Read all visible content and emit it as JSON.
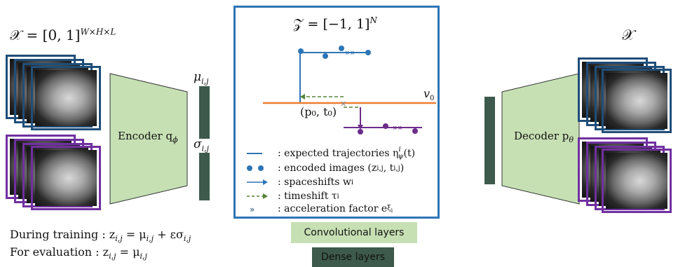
{
  "input_space": "𝒳 = [0, 1]",
  "input_space_sup": "W×H×L",
  "output_space": "𝒳",
  "latent_space": "𝒵 = [−1, 1]",
  "latent_space_sup": "N",
  "encoder_label": "Encoder q",
  "encoder_sub": "ϕ",
  "decoder_label": "Decoder p",
  "decoder_sub": "θ",
  "mu_label": "μ",
  "mu_sub": "i,j",
  "sigma_label": "σ",
  "sigma_sub": "i,j",
  "v0_label": "v",
  "v0_sub": "0",
  "p0t0_label": "(p₀, t₀)",
  "legend": [
    {
      "text": ": expected trajectories η",
      "sup": "i",
      "sub": "ψ",
      "tail": "(t)"
    },
    {
      "text": ": encoded images (z",
      "sub": "i,j",
      "mid": ", t",
      "sub2": "i,j",
      "tail": ")"
    },
    {
      "text": ": spaceshifts w",
      "sub": "i"
    },
    {
      "text": ": timeshift τ",
      "sub": "i"
    },
    {
      "text": ": acceleration factor e",
      "sup": "ξ",
      "supsub": "i"
    }
  ],
  "training_text": "During training : z",
  "training_sub": "i,j",
  "training_rhs": " = μ",
  "training_rhs_sub": "i,j",
  "training_rhs2": " + εσ",
  "training_rhs2_sub": "i,j",
  "eval_text": "For evaluation : z",
  "eval_sub": "i,j",
  "eval_rhs": " = μ",
  "eval_rhs_sub": "i,j",
  "conv_label": "Convolutional layers",
  "dense_label": "Dense layers",
  "colors": {
    "blue_frame": "#1f4e79",
    "purple_frame": "#7030a0",
    "conv_green": "#c6e0b4",
    "dense_green": "#3d5a4c",
    "panel_border": "#2e75b6",
    "trajectory_blue": "#2e75b6",
    "trajectory_purple": "#6b2d8a",
    "orange": "#ed7d31",
    "timeshift_green": "#548235"
  }
}
